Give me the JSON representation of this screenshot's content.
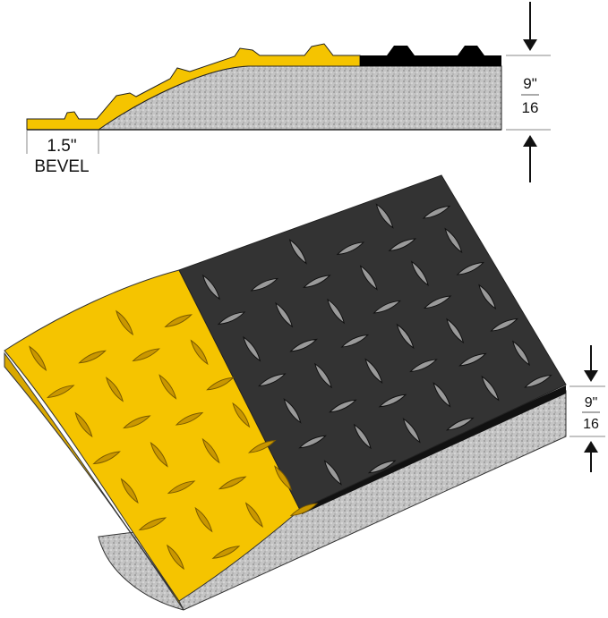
{
  "profile": {
    "bevel_width": "1.5\"",
    "bevel_label": "BEVEL",
    "thickness_numerator": "9\"",
    "thickness_denominator": "16"
  },
  "mat_view": {
    "thickness_numerator": "9\"",
    "thickness_denominator": "16"
  },
  "colors": {
    "safety_yellow": "#f5c400",
    "black_surface": "#2e2e2e",
    "foam_gray": "#bdbdbd"
  }
}
